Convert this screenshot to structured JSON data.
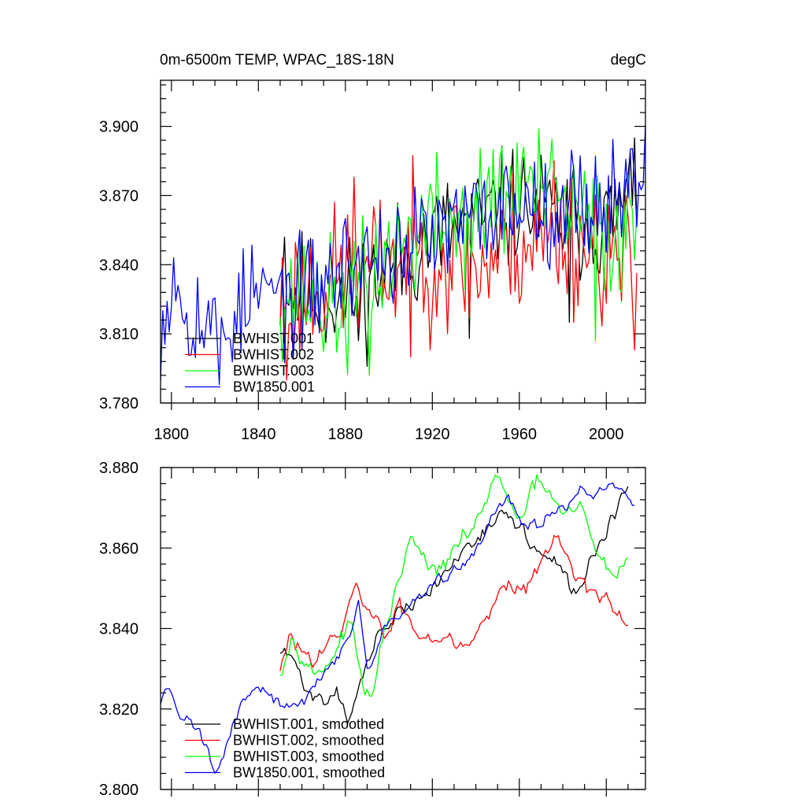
{
  "chart_data": [
    {
      "type": "line",
      "title": "0m-6500m TEMP, WPAC_18S-18N",
      "units": "degC",
      "xlim": [
        1795,
        2018
      ],
      "ylim": [
        3.78,
        3.92
      ],
      "yticks": [
        3.78,
        3.81,
        3.84,
        3.87,
        3.9
      ],
      "ytick_labels": [
        "3.780",
        "3.810",
        "3.840",
        "3.870",
        "3.900"
      ],
      "xticks": [
        1800,
        1840,
        1880,
        1920,
        1960,
        2000
      ],
      "xtick_labels": [
        "1800",
        "1840",
        "1880",
        "1920",
        "1960",
        "2000"
      ],
      "legend_position": "bottom-left",
      "series": [
        {
          "name": "BWHIST.001",
          "color": "#000000",
          "x_start": 1850,
          "x_end": 2014,
          "noise": 0.013,
          "seed": 11,
          "anchors": [
            [
              1850,
              3.83
            ],
            [
              1880,
              3.825
            ],
            [
              1900,
              3.838
            ],
            [
              1920,
              3.852
            ],
            [
              1940,
              3.858
            ],
            [
              1960,
              3.866
            ],
            [
              1980,
              3.86
            ],
            [
              2000,
              3.858
            ],
            [
              2014,
              3.872
            ]
          ],
          "mins": [
            [
              1937,
              3.808
            ],
            [
              1983,
              3.815
            ],
            [
              1886,
              3.807
            ]
          ],
          "maxs": [
            [
              2013,
              3.895
            ],
            [
              1852,
              3.852
            ]
          ]
        },
        {
          "name": "BWHIST.002",
          "color": "#ff0000",
          "x_start": 1850,
          "x_end": 2014,
          "noise": 0.016,
          "seed": 23,
          "anchors": [
            [
              1850,
              3.825
            ],
            [
              1880,
              3.835
            ],
            [
              1900,
              3.84
            ],
            [
              1920,
              3.845
            ],
            [
              1940,
              3.838
            ],
            [
              1960,
              3.85
            ],
            [
              1980,
              3.852
            ],
            [
              2000,
              3.846
            ],
            [
              2014,
              3.83
            ]
          ],
          "mins": [
            [
              1853,
              3.79
            ],
            [
              2013,
              3.803
            ],
            [
              1910,
              3.8
            ]
          ],
          "maxs": [
            [
              1884,
              3.878
            ],
            [
              1976,
              3.885
            ],
            [
              2009,
              3.87
            ]
          ]
        },
        {
          "name": "BWHIST.003",
          "color": "#00ff00",
          "x_start": 1850,
          "x_end": 2014,
          "noise": 0.014,
          "seed": 37,
          "anchors": [
            [
              1850,
              3.83
            ],
            [
              1880,
              3.82
            ],
            [
              1900,
              3.845
            ],
            [
              1920,
              3.858
            ],
            [
              1940,
              3.86
            ],
            [
              1960,
              3.875
            ],
            [
              1980,
              3.866
            ],
            [
              2000,
              3.852
            ],
            [
              2014,
              3.858
            ]
          ],
          "mins": [
            [
              1891,
              3.792
            ],
            [
              1995,
              3.807
            ]
          ],
          "maxs": [
            [
              1948,
              3.89
            ],
            [
              1962,
              3.891
            ]
          ]
        },
        {
          "name": "BW1850.001",
          "color": "#0000ff",
          "x_start": 1795,
          "x_end": 2018,
          "noise": 0.012,
          "seed": 53,
          "anchors": [
            [
              1795,
              3.815
            ],
            [
              1800,
              3.83
            ],
            [
              1820,
              3.81
            ],
            [
              1840,
              3.828
            ],
            [
              1860,
              3.825
            ],
            [
              1880,
              3.84
            ],
            [
              1900,
              3.846
            ],
            [
              1920,
              3.852
            ],
            [
              1940,
              3.86
            ],
            [
              1960,
              3.868
            ],
            [
              1980,
              3.866
            ],
            [
              2000,
              3.868
            ],
            [
              2018,
              3.88
            ]
          ],
          "mins": [
            [
              1822,
              3.788
            ]
          ],
          "maxs": [
            [
              1801,
              3.843
            ],
            [
              2018,
              3.901
            ]
          ]
        }
      ]
    },
    {
      "type": "line",
      "title": "",
      "xlim": [
        1795,
        2018
      ],
      "ylim": [
        3.8,
        3.88
      ],
      "yticks": [
        3.8,
        3.82,
        3.84,
        3.86,
        3.88
      ],
      "ytick_labels": [
        "3.800",
        "3.820",
        "3.840",
        "3.860",
        "3.880"
      ],
      "xticks": [
        1800,
        1840,
        1880,
        1920,
        1960,
        2000
      ],
      "legend_position": "bottom-left",
      "series": [
        {
          "name": "BWHIST.001, smoothed",
          "color": "#000000",
          "x_start": 1850,
          "x_end": 2010,
          "noise": 0.0022,
          "seed": 71,
          "anchors": [
            [
              1850,
              3.834
            ],
            [
              1855,
              3.833
            ],
            [
              1862,
              3.825
            ],
            [
              1870,
              3.822
            ],
            [
              1876,
              3.825
            ],
            [
              1882,
              3.818
            ],
            [
              1888,
              3.828
            ],
            [
              1895,
              3.838
            ],
            [
              1905,
              3.844
            ],
            [
              1915,
              3.847
            ],
            [
              1925,
              3.853
            ],
            [
              1935,
              3.86
            ],
            [
              1945,
              3.866
            ],
            [
              1955,
              3.868
            ],
            [
              1962,
              3.864
            ],
            [
              1970,
              3.858
            ],
            [
              1978,
              3.855
            ],
            [
              1986,
              3.848
            ],
            [
              1993,
              3.857
            ],
            [
              2002,
              3.867
            ],
            [
              2010,
              3.874
            ]
          ]
        },
        {
          "name": "BWHIST.002, smoothed",
          "color": "#ff0000",
          "x_start": 1850,
          "x_end": 2010,
          "noise": 0.0024,
          "seed": 83,
          "anchors": [
            [
              1850,
              3.829
            ],
            [
              1855,
              3.838
            ],
            [
              1862,
              3.833
            ],
            [
              1870,
              3.836
            ],
            [
              1878,
              3.838
            ],
            [
              1885,
              3.85
            ],
            [
              1890,
              3.845
            ],
            [
              1898,
              3.838
            ],
            [
              1905,
              3.845
            ],
            [
              1912,
              3.84
            ],
            [
              1920,
              3.838
            ],
            [
              1928,
              3.839
            ],
            [
              1935,
              3.836
            ],
            [
              1945,
              3.843
            ],
            [
              1955,
              3.853
            ],
            [
              1962,
              3.85
            ],
            [
              1970,
              3.856
            ],
            [
              1978,
              3.863
            ],
            [
              1986,
              3.854
            ],
            [
              1995,
              3.848
            ],
            [
              2002,
              3.845
            ],
            [
              2010,
              3.842
            ]
          ]
        },
        {
          "name": "BWHIST.003, smoothed",
          "color": "#00ff00",
          "x_start": 1850,
          "x_end": 2010,
          "noise": 0.0024,
          "seed": 97,
          "anchors": [
            [
              1850,
              3.83
            ],
            [
              1855,
              3.838
            ],
            [
              1860,
              3.835
            ],
            [
              1866,
              3.828
            ],
            [
              1875,
              3.834
            ],
            [
              1882,
              3.842
            ],
            [
              1888,
              3.825
            ],
            [
              1893,
              3.823
            ],
            [
              1898,
              3.84
            ],
            [
              1904,
              3.85
            ],
            [
              1910,
              3.862
            ],
            [
              1915,
              3.858
            ],
            [
              1922,
              3.853
            ],
            [
              1928,
              3.858
            ],
            [
              1935,
              3.862
            ],
            [
              1945,
              3.872
            ],
            [
              1950,
              3.878
            ],
            [
              1955,
              3.87
            ],
            [
              1962,
              3.868
            ],
            [
              1968,
              3.876
            ],
            [
              1974,
              3.874
            ],
            [
              1980,
              3.867
            ],
            [
              1988,
              3.87
            ],
            [
              1995,
              3.86
            ],
            [
              2002,
              3.853
            ],
            [
              2010,
              3.858
            ]
          ]
        },
        {
          "name": "BW1850.001, smoothed",
          "color": "#0000ff",
          "x_start": 1795,
          "x_end": 2013,
          "noise": 0.0018,
          "seed": 131,
          "anchors": [
            [
              1795,
              3.822
            ],
            [
              1798,
              3.826
            ],
            [
              1803,
              3.82
            ],
            [
              1810,
              3.816
            ],
            [
              1815,
              3.812
            ],
            [
              1820,
              3.805
            ],
            [
              1822,
              3.804
            ],
            [
              1826,
              3.812
            ],
            [
              1832,
              3.822
            ],
            [
              1840,
              3.825
            ],
            [
              1850,
              3.822
            ],
            [
              1858,
              3.82
            ],
            [
              1866,
              3.826
            ],
            [
              1875,
              3.833
            ],
            [
              1882,
              3.838
            ],
            [
              1886,
              3.846
            ],
            [
              1890,
              3.828
            ],
            [
              1898,
              3.84
            ],
            [
              1906,
              3.843
            ],
            [
              1914,
              3.848
            ],
            [
              1922,
              3.852
            ],
            [
              1932,
              3.854
            ],
            [
              1942,
              3.862
            ],
            [
              1950,
              3.87
            ],
            [
              1955,
              3.872
            ],
            [
              1962,
              3.866
            ],
            [
              1970,
              3.866
            ],
            [
              1978,
              3.87
            ],
            [
              1988,
              3.874
            ],
            [
              1996,
              3.873
            ],
            [
              2004,
              3.875
            ],
            [
              2013,
              3.871
            ]
          ]
        }
      ]
    }
  ]
}
